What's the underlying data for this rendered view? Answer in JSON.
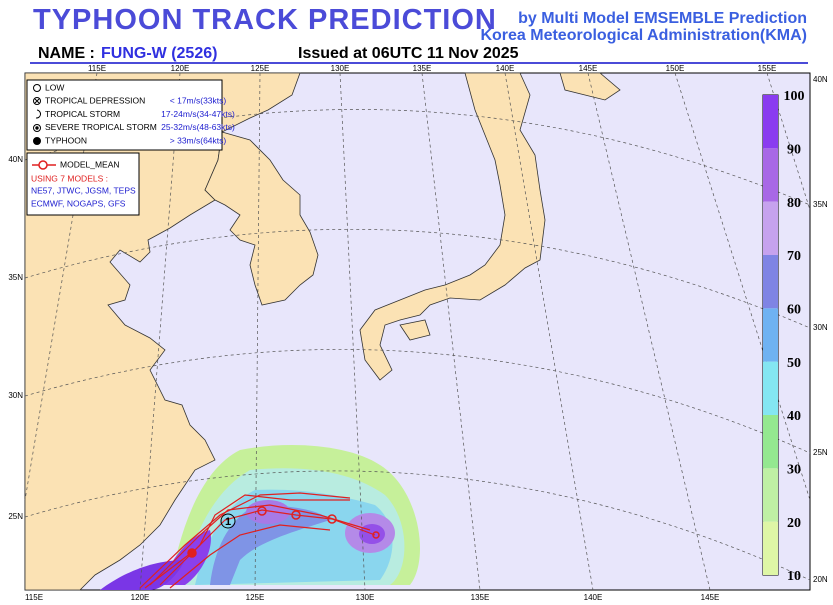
{
  "header": {
    "title": "TYPHOON  TRACK  PREDICTION",
    "subtitle_1": "by Multi Model EMSEMBLE Prediction",
    "subtitle_2": "Korea Meteorological Administration(KMA)",
    "name_label": "NAME :",
    "name": "FUNG-W (2526)",
    "issued": "Issued at  06UTC 11 Nov 2025"
  },
  "map": {
    "top_lon_labels": [
      "115E",
      "120E",
      "125E",
      "130E",
      "135E",
      "140E",
      "145E",
      "150E",
      "155E"
    ],
    "bottom_lon_labels": [
      "115E",
      "120E",
      "125E",
      "130E",
      "135E",
      "140E",
      "145E"
    ],
    "left_lat_labels": [
      "40N",
      "35N",
      "30N",
      "25N"
    ],
    "right_lat_labels": [
      "40N",
      "35N",
      "30N",
      "25N",
      "20N"
    ],
    "track_marker": "1"
  },
  "legend": {
    "intensity": [
      {
        "label": "LOW"
      },
      {
        "label": "TROPICAL DEPRESSION",
        "speed": "< 17m/s(33kts)"
      },
      {
        "label": "TROPICAL STORM",
        "speed": "17-24m/s(34-47kts)"
      },
      {
        "label": "SEVERE TROPICAL STORM",
        "speed": "25-32m/s(48-63kts)"
      },
      {
        "label": "TYPHOON",
        "speed": "> 33m/s(64kts)"
      }
    ],
    "model_mean": "MODEL_MEAN",
    "models_heading": "USING 7 MODELS :",
    "models_line_1": "NE57, JTWC, JGSM, TEPS",
    "models_line_2": "ECMWF, NOGAPS, GFS"
  },
  "colorbar": {
    "labels": [
      100,
      90,
      80,
      70,
      60,
      50,
      40,
      30,
      20,
      10
    ]
  }
}
